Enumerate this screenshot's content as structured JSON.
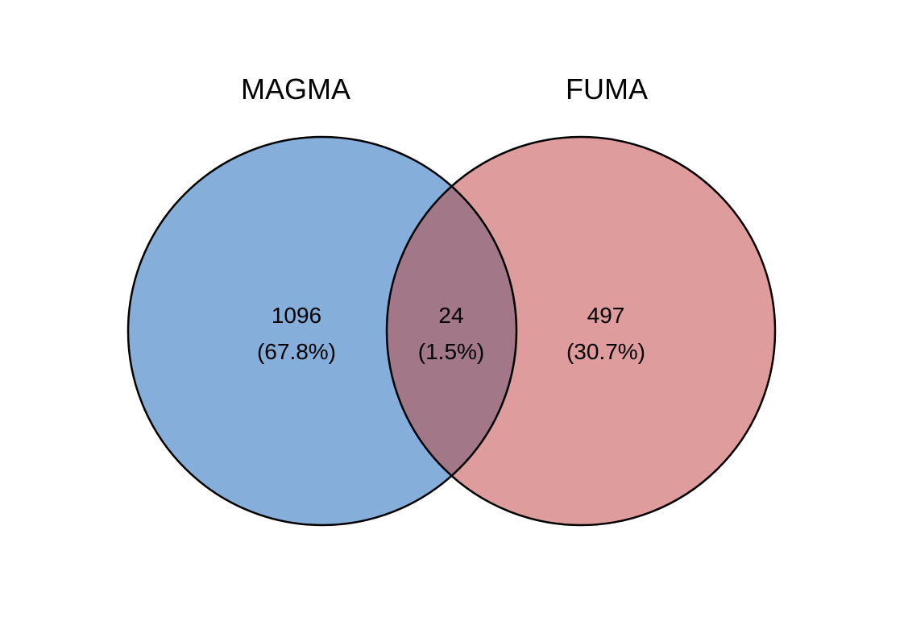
{
  "diagram": {
    "type": "venn",
    "sets": [
      {
        "name": "MAGMA",
        "color": "#86AEDA"
      },
      {
        "name": "FUMA",
        "color": "#DF9C9D"
      }
    ],
    "intersection_color": "#A27787",
    "outline_color": "#000000",
    "regions": {
      "magma_only": {
        "count": "1096",
        "percent": "(67.8%)"
      },
      "both": {
        "count": "24",
        "percent": "(1.5%)"
      },
      "fuma_only": {
        "count": "497",
        "percent": "(30.7%)"
      }
    }
  }
}
